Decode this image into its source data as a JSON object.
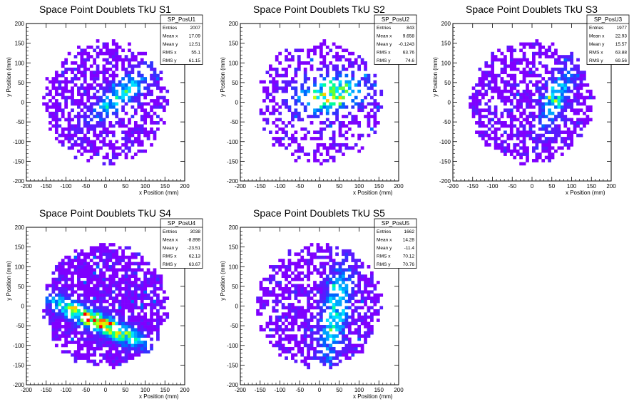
{
  "chart_data": [
    {
      "type": "heatmap",
      "title": "Space Point Doublets TkU S1",
      "xlabel": "x Position (mm)",
      "ylabel": "y Position (mm)",
      "xlim": [
        -200,
        200
      ],
      "ylim": [
        -200,
        200
      ],
      "xticks": [
        "-200",
        "-150",
        "-100",
        "-50",
        "0",
        "50",
        "100",
        "150",
        "200"
      ],
      "yticks": [
        "-200",
        "-150",
        "-100",
        "-50",
        "0",
        "50",
        "100",
        "150",
        "200"
      ],
      "stats": {
        "name": "SP_PosU1",
        "rows": [
          {
            "label": "Entries",
            "value": "2007"
          },
          {
            "label": "Mean x",
            "value": "17.09"
          },
          {
            "label": "Mean y",
            "value": "12.51"
          },
          {
            "label": "RMS x",
            "value": "55.1"
          },
          {
            "label": "RMS y",
            "value": "61.15"
          }
        ]
      },
      "distribution": {
        "radius": 160,
        "hot_cx": 40,
        "hot_cy": 20,
        "hot_dir": 0.7,
        "hot_len": 70,
        "hot_w": 18,
        "fill": 0.6,
        "peak": 0.55,
        "seed": 11
      }
    },
    {
      "type": "heatmap",
      "title": "Space Point Doublets TkU S2",
      "xlabel": "x Position (mm)",
      "ylabel": "y Position (mm)",
      "xlim": [
        -200,
        200
      ],
      "ylim": [
        -200,
        200
      ],
      "xticks": [
        "-200",
        "-150",
        "-100",
        "-50",
        "0",
        "50",
        "100",
        "150",
        "200"
      ],
      "yticks": [
        "-200",
        "-150",
        "-100",
        "-50",
        "0",
        "50",
        "100",
        "150",
        "200"
      ],
      "stats": {
        "name": "SP_PosU2",
        "rows": [
          {
            "label": "Entries",
            "value": "843"
          },
          {
            "label": "Mean x",
            "value": "9.658"
          },
          {
            "label": "Mean y",
            "value": "-0.1243"
          },
          {
            "label": "RMS x",
            "value": "63.76"
          },
          {
            "label": "RMS y",
            "value": "74.6"
          }
        ]
      },
      "distribution": {
        "radius": 160,
        "hot_cx": 30,
        "hot_cy": 20,
        "hot_dir": 0.2,
        "hot_len": 60,
        "hot_w": 30,
        "fill": 0.42,
        "peak": 0.75,
        "seed": 23
      }
    },
    {
      "type": "heatmap",
      "title": "Space Point Doublets TkU S3",
      "xlabel": "x Position (mm)",
      "ylabel": "y Position (mm)",
      "xlim": [
        -200,
        200
      ],
      "ylim": [
        -200,
        200
      ],
      "xticks": [
        "-200",
        "-150",
        "-100",
        "-50",
        "0",
        "50",
        "100",
        "150",
        "200"
      ],
      "yticks": [
        "-200",
        "-150",
        "-100",
        "-50",
        "0",
        "50",
        "100",
        "150",
        "200"
      ],
      "stats": {
        "name": "SP_PosU3",
        "rows": [
          {
            "label": "Entries",
            "value": "1977"
          },
          {
            "label": "Mean x",
            "value": "22.93"
          },
          {
            "label": "Mean y",
            "value": "15.57"
          },
          {
            "label": "RMS x",
            "value": "63.88"
          },
          {
            "label": "RMS y",
            "value": "69.56"
          }
        ]
      },
      "distribution": {
        "radius": 160,
        "hot_cx": 60,
        "hot_cy": 10,
        "hot_dir": 1.2,
        "hot_len": 60,
        "hot_w": 20,
        "fill": 0.62,
        "peak": 0.5,
        "seed": 37
      }
    },
    {
      "type": "heatmap",
      "title": "Space Point Doublets TkU S4",
      "xlabel": "x Position (mm)",
      "ylabel": "y Position (mm)",
      "xlim": [
        -200,
        200
      ],
      "ylim": [
        -200,
        200
      ],
      "xticks": [
        "-200",
        "-150",
        "-100",
        "-50",
        "0",
        "50",
        "100",
        "150",
        "200"
      ],
      "yticks": [
        "-200",
        "-150",
        "-100",
        "-50",
        "0",
        "50",
        "100",
        "150",
        "200"
      ],
      "stats": {
        "name": "SP_PosU4",
        "rows": [
          {
            "label": "Entries",
            "value": "3038"
          },
          {
            "label": "Mean x",
            "value": "-8.898"
          },
          {
            "label": "Mean y",
            "value": "-23.51"
          },
          {
            "label": "RMS x",
            "value": "62.13"
          },
          {
            "label": "RMS y",
            "value": "63.67"
          }
        ]
      },
      "distribution": {
        "radius": 160,
        "hot_cx": -20,
        "hot_cy": -40,
        "hot_dir": -0.45,
        "hot_len": 90,
        "hot_w": 16,
        "fill": 0.82,
        "peak": 0.95,
        "seed": 41
      }
    },
    {
      "type": "heatmap",
      "title": "Space Point Doublets TkU S5",
      "xlabel": "x Position (mm)",
      "ylabel": "y Position (mm)",
      "xlim": [
        -200,
        200
      ],
      "ylim": [
        -200,
        200
      ],
      "xticks": [
        "-200",
        "-150",
        "-100",
        "-50",
        "0",
        "50",
        "100",
        "150",
        "200"
      ],
      "yticks": [
        "-200",
        "-150",
        "-100",
        "-50",
        "0",
        "50",
        "100",
        "150",
        "200"
      ],
      "stats": {
        "name": "SP_PosU5",
        "rows": [
          {
            "label": "Entries",
            "value": "1662"
          },
          {
            "label": "Mean x",
            "value": "14.28"
          },
          {
            "label": "Mean y",
            "value": "-11.4"
          },
          {
            "label": "RMS x",
            "value": "70.12"
          },
          {
            "label": "RMS y",
            "value": "70.76"
          }
        ]
      },
      "distribution": {
        "radius": 160,
        "hot_cx": 40,
        "hot_cy": -20,
        "hot_dir": 1.4,
        "hot_len": 90,
        "hot_w": 22,
        "fill": 0.6,
        "peak": 0.55,
        "seed": 53
      }
    }
  ],
  "colors": {
    "palette": [
      "#7f00ff",
      "#5a1aff",
      "#3333ff",
      "#0066ff",
      "#00a3ff",
      "#00e0ff",
      "#00ff9a",
      "#66ff33",
      "#ccff00",
      "#ffcc00",
      "#ff6600",
      "#ff0000"
    ],
    "frame": "#000000",
    "background": "#ffffff"
  }
}
